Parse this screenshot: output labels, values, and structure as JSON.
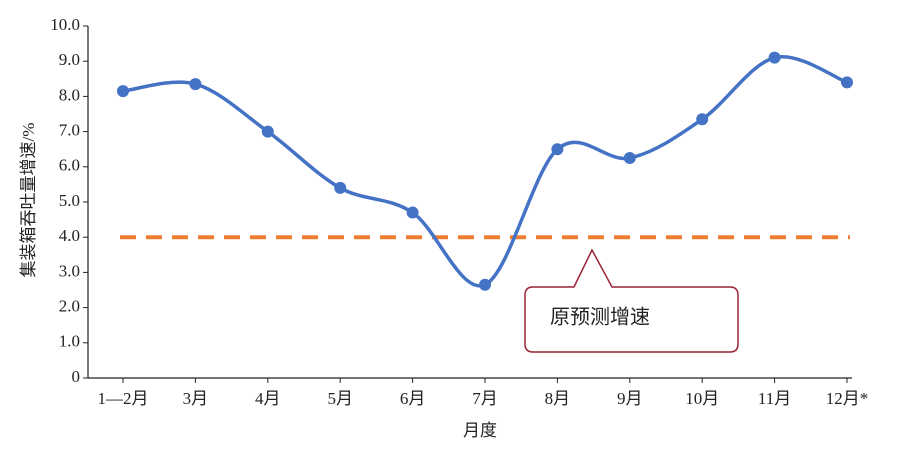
{
  "chart_data": {
    "type": "line",
    "categories": [
      "1—2月",
      "3月",
      "4月",
      "5月",
      "6月",
      "7月",
      "8月",
      "9月",
      "10月",
      "11月",
      "12月*"
    ],
    "series": [
      {
        "color": "#4472c4",
        "values": [
          8.15,
          8.35,
          7.0,
          5.4,
          4.7,
          2.65,
          6.5,
          6.25,
          7.35,
          9.1,
          8.4
        ]
      }
    ],
    "reference_line": {
      "value": 4.0,
      "color": "#ed7d31",
      "label": "原预测增速"
    },
    "xlabel": "月度",
    "ylabel": "集装箱吞吐量增速/%",
    "ylim": [
      0,
      10
    ],
    "yticks": [
      0,
      {
        "value": 1,
        "label": "1.0"
      },
      {
        "value": 2,
        "label": "2.0"
      },
      {
        "value": 3,
        "label": "3.0"
      },
      {
        "value": 4,
        "label": "4.0"
      },
      {
        "value": 5,
        "label": "5.0"
      },
      {
        "value": 6,
        "label": "6.0"
      },
      {
        "value": 7,
        "label": "7.0"
      },
      {
        "value": 8,
        "label": "8.0"
      },
      {
        "value": 9,
        "label": "9.0"
      },
      {
        "value": 10,
        "label": "10.0"
      }
    ]
  }
}
